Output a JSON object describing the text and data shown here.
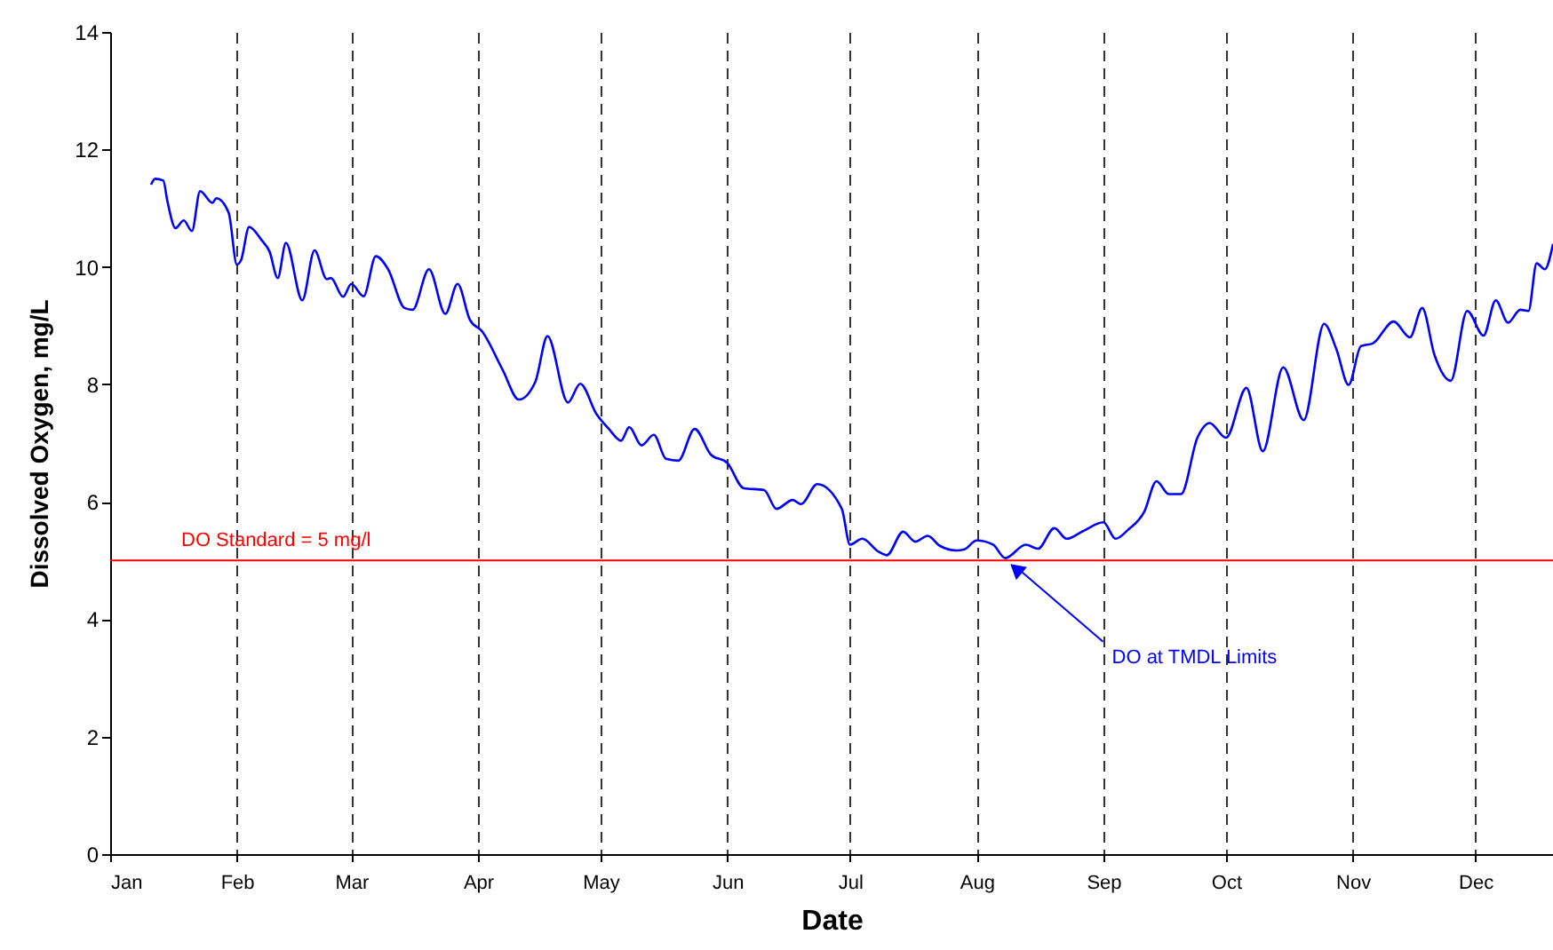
{
  "chart_data": {
    "type": "line",
    "xlabel": "Date",
    "ylabel": "Dissolved Oxygen, mg/L",
    "x": [
      "--01-11",
      "--01-12",
      "--01-14",
      "--01-15",
      "--01-17",
      "--01-19",
      "--01-21",
      "--01-23",
      "--01-26",
      "--01-27",
      "--01-30",
      "--02-01",
      "--02-02",
      "--02-04",
      "--02-07",
      "--02-09",
      "--02-11",
      "--02-13",
      "--02-17",
      "--02-20",
      "--02-23",
      "--02-24",
      "--02-27",
      "--03-01",
      "--03-04",
      "--03-07",
      "--03-10",
      "--03-14",
      "--03-16",
      "--03-20",
      "--03-24",
      "--03-27",
      "--03-30",
      "--04-02",
      "--04-07",
      "--04-11",
      "--04-15",
      "--04-18",
      "--04-23",
      "--04-26",
      "--04-30",
      "--05-03",
      "--05-06",
      "--05-08",
      "--05-11",
      "--05-14",
      "--05-17",
      "--05-20",
      "--05-24",
      "--05-28",
      "--06-01",
      "--06-05",
      "--06-10",
      "--06-13",
      "--06-17",
      "--06-19",
      "--06-23",
      "--06-29",
      "--07-01",
      "--07-04",
      "--07-08",
      "--07-10",
      "--07-14",
      "--07-17",
      "--07-20",
      "--07-23",
      "--07-27",
      "--07-29",
      "--08-01",
      "--08-05",
      "--08-08",
      "--08-13",
      "--08-16",
      "--08-20",
      "--08-23",
      "--08-27",
      "--09-01",
      "--09-04",
      "--09-07",
      "--09-11",
      "--09-14",
      "--09-17",
      "--09-20",
      "--09-24",
      "--09-27",
      "--10-01",
      "--10-06",
      "--10-10",
      "--10-15",
      "--10-20",
      "--10-25",
      "--10-28",
      "--10-31",
      "--11-03",
      "--11-06",
      "--11-11",
      "--11-15",
      "--11-18",
      "--11-21",
      "--11-25",
      "--11-29",
      "--12-03",
      "--12-06",
      "--12-09",
      "--12-12",
      "--12-14",
      "--12-16",
      "--12-18",
      "--12-20"
    ],
    "series": [
      {
        "color": "#0000ff",
        "values": [
          11.4,
          11.5,
          11.47,
          11.12,
          10.66,
          10.79,
          10.61,
          11.29,
          11.09,
          11.17,
          10.92,
          10.04,
          10.11,
          10.68,
          10.46,
          10.26,
          9.81,
          10.41,
          9.43,
          10.28,
          9.79,
          9.81,
          9.49,
          9.71,
          9.5,
          10.18,
          9.96,
          9.3,
          9.27,
          9.96,
          9.2,
          9.71,
          9.1,
          8.9,
          8.25,
          7.74,
          8.04,
          8.82,
          7.69,
          8.01,
          7.49,
          7.24,
          7.04,
          7.27,
          6.96,
          7.14,
          6.73,
          6.7,
          7.24,
          6.8,
          6.66,
          6.23,
          6.2,
          5.88,
          6.03,
          5.96,
          6.3,
          5.88,
          5.27,
          5.37,
          5.15,
          5.09,
          5.49,
          5.32,
          5.42,
          5.25,
          5.17,
          5.19,
          5.34,
          5.27,
          5.04,
          5.27,
          5.2,
          5.55,
          5.37,
          5.5,
          5.65,
          5.37,
          5.52,
          5.83,
          6.35,
          6.13,
          6.13,
          7.09,
          7.34,
          7.09,
          7.94,
          6.86,
          8.29,
          7.39,
          9.03,
          8.6,
          7.99,
          8.65,
          8.7,
          9.07,
          8.8,
          9.3,
          8.5,
          8.06,
          9.25,
          8.83,
          9.43,
          9.05,
          9.27,
          9.25,
          10.06,
          9.96,
          10.39
        ]
      }
    ],
    "xlim": [
      "--01-01",
      "--12-20"
    ],
    "xticks": [
      {
        "value": "--01-01",
        "label": "Jan"
      },
      {
        "value": "--02-01",
        "label": "Feb"
      },
      {
        "value": "--03-01",
        "label": "Mar"
      },
      {
        "value": "--04-01",
        "label": "Apr"
      },
      {
        "value": "--05-01",
        "label": "May"
      },
      {
        "value": "--06-01",
        "label": "Jun"
      },
      {
        "value": "--07-01",
        "label": "Jul"
      },
      {
        "value": "--08-01",
        "label": "Aug"
      },
      {
        "value": "--09-01",
        "label": "Sep"
      },
      {
        "value": "--10-01",
        "label": "Oct"
      },
      {
        "value": "--11-01",
        "label": "Nov"
      },
      {
        "value": "--12-01",
        "label": "Dec"
      }
    ],
    "ylim": [
      0,
      14
    ],
    "yticks": [
      0,
      2,
      4,
      6,
      8,
      10,
      12,
      14
    ],
    "grid": "x",
    "ref_lines": [
      {
        "axis": "y",
        "value": 5,
        "label": "DO Standard  = 5 mg/l",
        "color": "#ff0000"
      }
    ],
    "annotations": [
      {
        "text": "DO at TMDL Limits",
        "x": "--08-08",
        "y": 5.04
      }
    ]
  }
}
